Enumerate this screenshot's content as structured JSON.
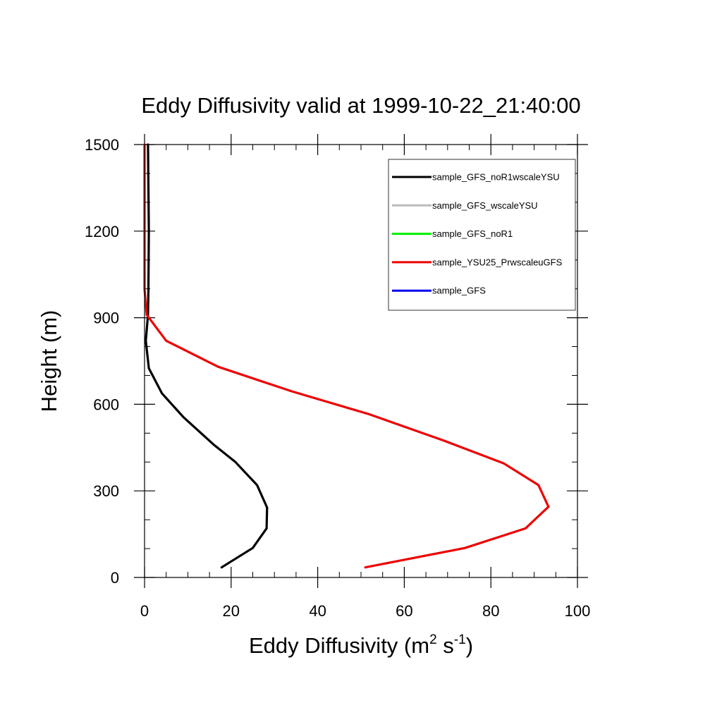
{
  "chart_data": {
    "type": "line",
    "title": "Eddy Diffusivity valid at 1999-10-22_21:40:00",
    "xlabel": {
      "main": "Eddy Diffusivity (m",
      "sup1": "2",
      "mid": " s",
      "sup2": "-1",
      "end": ")"
    },
    "ylabel": "Height (m)",
    "xlim": [
      0,
      100
    ],
    "ylim": [
      0,
      1500
    ],
    "x_ticks": [
      0,
      20,
      40,
      60,
      80,
      100
    ],
    "y_ticks": [
      0,
      300,
      600,
      900,
      1200,
      1500
    ],
    "x_tick_labels": [
      "0",
      "20",
      "40",
      "60",
      "80",
      "100"
    ],
    "y_tick_labels": [
      "0",
      "300",
      "600",
      "900",
      "1200",
      "1500"
    ],
    "x_minor_step": 5,
    "y_minor_step": 100,
    "grid": false,
    "legend_position": "top-right",
    "series": [
      {
        "name": "sample_GFS_noR1wscaleYSU",
        "color": "#000000",
        "x": [
          17.8,
          25,
          28.2,
          28.3,
          26,
          21,
          16,
          9,
          4,
          1,
          0.3,
          0.8,
          0.9,
          1.0,
          0.8
        ],
        "y": [
          35,
          102,
          170,
          242,
          320,
          400,
          460,
          555,
          638,
          725,
          820,
          910,
          1000,
          1200,
          1500
        ]
      },
      {
        "name": "sample_GFS_wscaleYSU",
        "color": "#bbbbbb",
        "x": [],
        "y": []
      },
      {
        "name": "sample_GFS_noR1",
        "color": "#00ee00",
        "x": [],
        "y": []
      },
      {
        "name": "sample_YSU25_PrwscaleuGFS",
        "color": "#ee0000",
        "x": [
          51,
          74,
          88,
          93.3,
          91,
          83,
          69,
          52,
          34,
          17,
          5,
          0.5,
          0,
          0,
          0
        ],
        "y": [
          35,
          102,
          170,
          245,
          320,
          395,
          475,
          565,
          645,
          730,
          820,
          910,
          1000,
          1200,
          1500
        ]
      },
      {
        "name": "sample_GFS",
        "color": "#0000ee",
        "x": [],
        "y": []
      }
    ]
  }
}
